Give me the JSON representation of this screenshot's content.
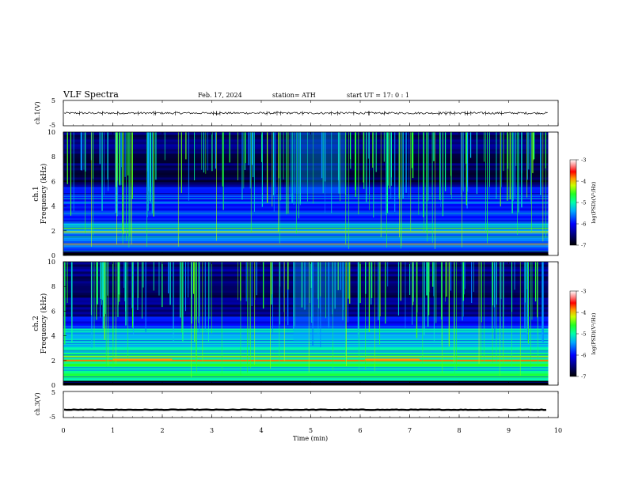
{
  "header": {
    "title": "VLF  Spectra",
    "date": "Feb. 17, 2024",
    "station": "station= ATH",
    "start_ut": "start  UT  =    17: 0   : 1"
  },
  "chart_data": [
    {
      "type": "line",
      "ylabel": "ch.1(V)",
      "yticks": [
        "5",
        "-5"
      ],
      "ylim": [
        -5,
        5
      ],
      "x": [
        0,
        10
      ],
      "description_values": {
        "mean": 0.0,
        "amplitude": 0.4
      }
    },
    {
      "type": "heatmap",
      "channel": "ch.1",
      "ylabel": "Frequency (kHz)",
      "yticks": [
        "10",
        "8",
        "6",
        "4",
        "2",
        "0"
      ],
      "ylim": [
        0,
        10
      ],
      "colorbar": {
        "label": "log(PSD)(V²/Hz)",
        "ticks": [
          "-3",
          "-4",
          "-5",
          "-6",
          "-7"
        ],
        "range": [
          -7,
          -3
        ]
      },
      "bands_khz": [
        {
          "f": 0.3,
          "level": -6.5
        },
        {
          "f": 0.9,
          "level": -3.5
        },
        {
          "f": 1.2,
          "level": -5.5
        },
        {
          "f": 1.5,
          "level": -4.8
        },
        {
          "f": 1.9,
          "level": -4.2
        },
        {
          "f": 2.2,
          "level": -4.5
        },
        {
          "f": 2.5,
          "level": -5.2
        },
        {
          "f": 3.1,
          "level": -6.0
        },
        {
          "f": 3.9,
          "level": -5.8
        },
        {
          "f": 4.6,
          "level": -6.2
        },
        {
          "f": 5.0,
          "level": -6.3
        }
      ]
    },
    {
      "type": "heatmap",
      "channel": "ch.2",
      "ylabel": "Frequency (kHz)",
      "yticks": [
        "10",
        "8",
        "6",
        "4",
        "2",
        "0"
      ],
      "ylim": [
        0,
        10
      ],
      "colorbar": {
        "label": "log(PSD)(V²/Hz)",
        "ticks": [
          "-3",
          "-4",
          "-5",
          "-6",
          "-7"
        ],
        "range": [
          -7,
          -3
        ]
      },
      "bands_khz": [
        {
          "f": 0.5,
          "level": -5.0
        },
        {
          "f": 1.2,
          "level": -5.0
        },
        {
          "f": 1.8,
          "level": -4.5
        },
        {
          "f": 2.0,
          "level": -3.8
        },
        {
          "f": 2.3,
          "level": -4.3
        },
        {
          "f": 2.8,
          "level": -4.8
        },
        {
          "f": 3.5,
          "level": -5.2
        },
        {
          "f": 4.2,
          "level": -5.6
        },
        {
          "f": 4.9,
          "level": -6.0
        }
      ]
    },
    {
      "type": "line",
      "ylabel": "ch.3(V)",
      "yticks": [
        "5",
        "-5"
      ],
      "ylim": [
        -5,
        5
      ],
      "x": [
        0,
        10
      ],
      "description_values": {
        "mean": -2.0,
        "amplitude": 0.1
      }
    }
  ],
  "xaxis": {
    "label": "Time  (min)",
    "ticks": [
      "0",
      "1",
      "2",
      "3",
      "4",
      "5",
      "6",
      "7",
      "8",
      "9",
      "10"
    ],
    "xlim": [
      0,
      10
    ],
    "data_end_min": 9.8
  }
}
